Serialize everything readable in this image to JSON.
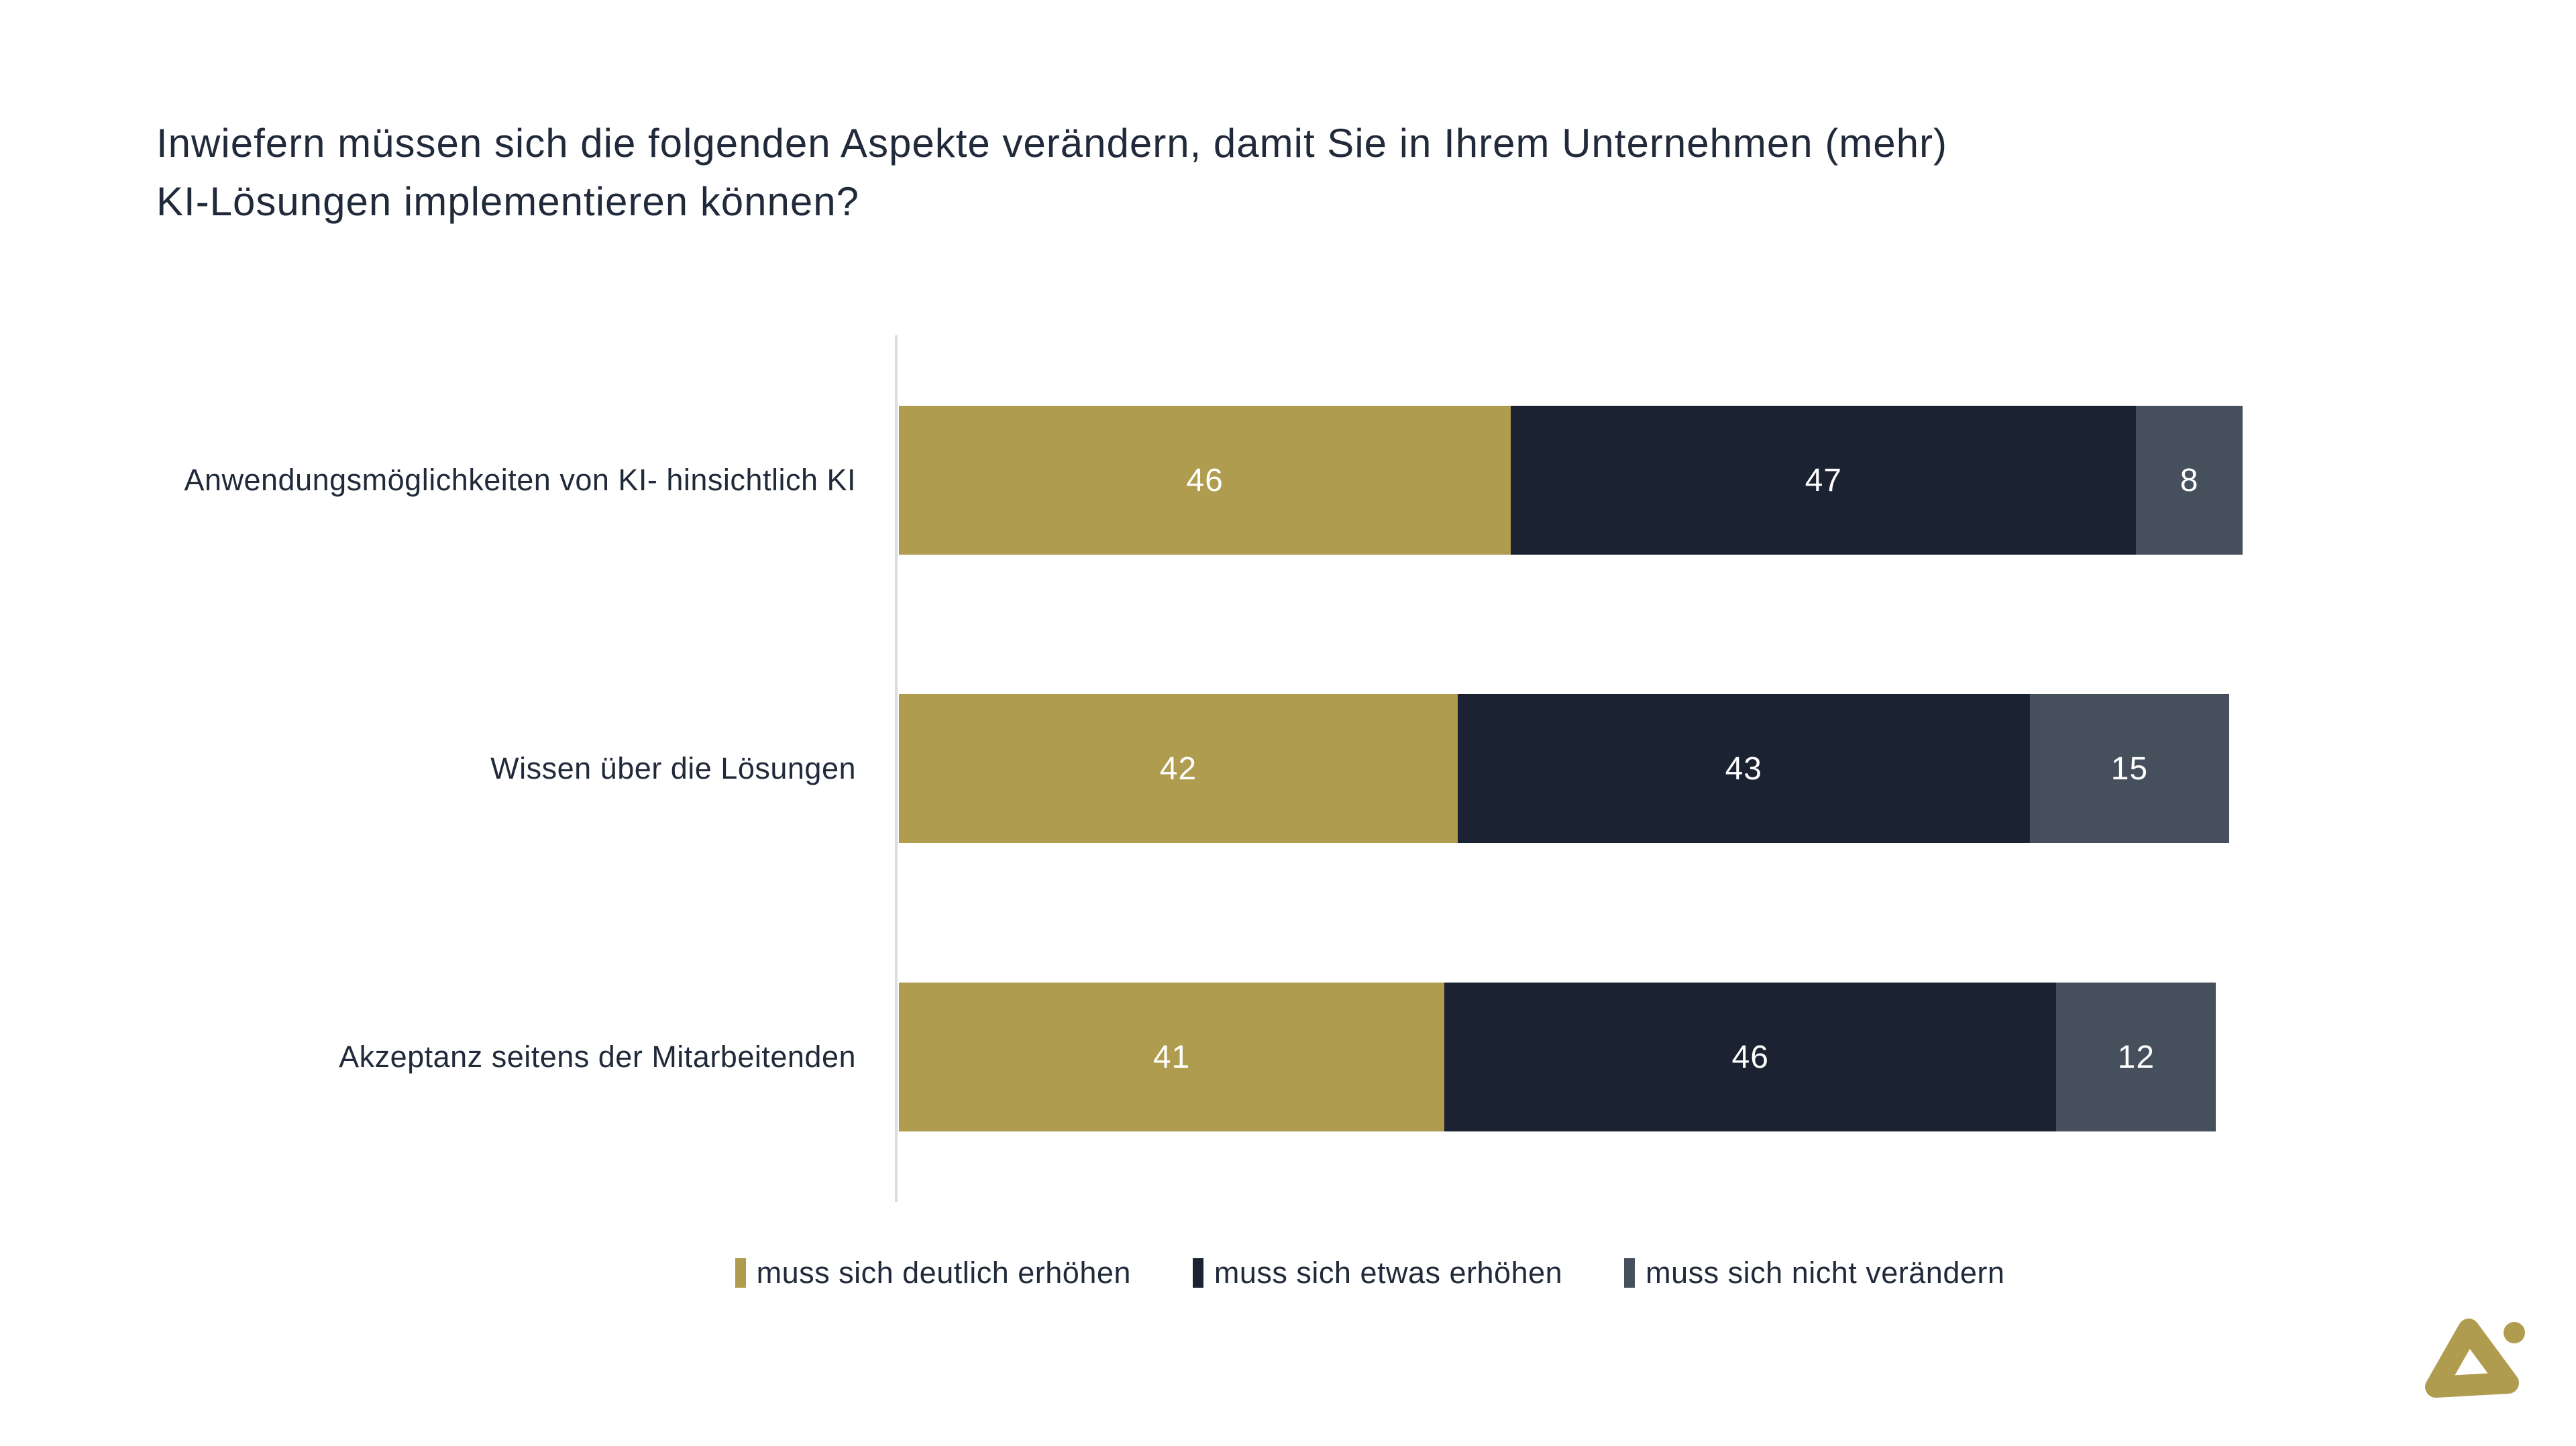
{
  "title": {
    "line1": "Inwiefern müssen sich die folgenden Aspekte verändern, damit Sie in Ihrem Unternehmen (mehr)",
    "line2": "KI-Lösungen implementieren können?"
  },
  "colors": {
    "gold": "#B09C4F",
    "navy": "#1B2231",
    "slate": "#46505C",
    "axis_line": "#DCDCDC",
    "text": "#212A3A",
    "value_text": "#FFFFFF",
    "logo": "#B09C4F"
  },
  "chart_data": {
    "type": "bar",
    "orientation": "horizontal",
    "stacked": true,
    "title": "Inwiefern müssen sich die folgenden Aspekte verändern, damit Sie in Ihrem Unternehmen (mehr) KI-Lösungen implementieren können?",
    "categories": [
      "Anwendungsmöglichkeiten von KI- hinsichtlich KI",
      "Wissen über die Lösungen",
      "Akzeptanz seitens der Mitarbeitenden"
    ],
    "series": [
      {
        "name": "muss sich deutlich erhöhen",
        "color": "#B09C4F",
        "values": [
          46,
          42,
          41
        ]
      },
      {
        "name": "muss sich etwas erhöhen",
        "color": "#1B2231",
        "values": [
          47,
          43,
          46
        ]
      },
      {
        "name": "muss sich nicht verändern",
        "color": "#46505C",
        "values": [
          8,
          15,
          12
        ]
      }
    ],
    "xmax": 101,
    "xlabel": "",
    "ylabel": "",
    "grid": false,
    "value_labels": "inside-center",
    "legend_position": "bottom"
  }
}
